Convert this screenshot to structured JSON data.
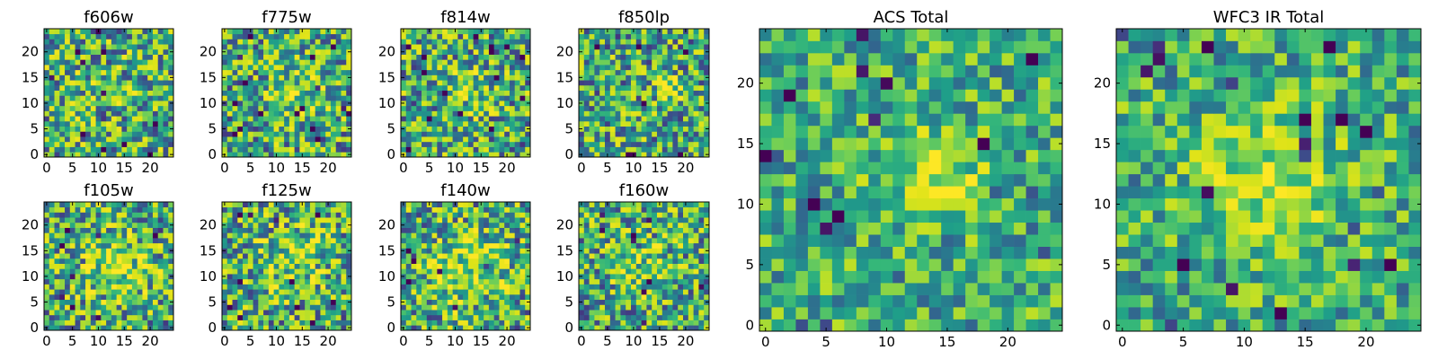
{
  "chart_data": [
    {
      "type": "heatmap",
      "title": "f606w",
      "xticks": [
        "0",
        "5",
        "10",
        "15",
        "20"
      ],
      "yticks": [
        "0",
        "5",
        "10",
        "15",
        "20"
      ],
      "xlim": [
        0,
        24
      ],
      "ylim": [
        0,
        24
      ],
      "colormap": "viridis",
      "grid": false,
      "values": []
    },
    {
      "type": "heatmap",
      "title": "f775w",
      "xticks": [
        "0",
        "5",
        "10",
        "15",
        "20"
      ],
      "yticks": [
        "0",
        "5",
        "10",
        "15",
        "20"
      ],
      "xlim": [
        0,
        24
      ],
      "ylim": [
        0,
        24
      ],
      "colormap": "viridis",
      "grid": false,
      "values": []
    },
    {
      "type": "heatmap",
      "title": "f814w",
      "xticks": [
        "0",
        "5",
        "10",
        "15",
        "20"
      ],
      "yticks": [
        "0",
        "5",
        "10",
        "15",
        "20"
      ],
      "xlim": [
        0,
        24
      ],
      "ylim": [
        0,
        24
      ],
      "colormap": "viridis",
      "grid": false,
      "values": []
    },
    {
      "type": "heatmap",
      "title": "f850lp",
      "xticks": [
        "0",
        "5",
        "10",
        "15",
        "20"
      ],
      "yticks": [
        "0",
        "5",
        "10",
        "15",
        "20"
      ],
      "xlim": [
        0,
        24
      ],
      "ylim": [
        0,
        24
      ],
      "colormap": "viridis",
      "grid": false,
      "values": []
    },
    {
      "type": "heatmap",
      "title": "f105w",
      "xticks": [
        "0",
        "5",
        "10",
        "15",
        "20"
      ],
      "yticks": [
        "0",
        "5",
        "10",
        "15",
        "20"
      ],
      "xlim": [
        0,
        24
      ],
      "ylim": [
        0,
        24
      ],
      "colormap": "viridis",
      "grid": false,
      "values": []
    },
    {
      "type": "heatmap",
      "title": "f125w",
      "xticks": [
        "0",
        "5",
        "10",
        "15",
        "20"
      ],
      "yticks": [
        "0",
        "5",
        "10",
        "15",
        "20"
      ],
      "xlim": [
        0,
        24
      ],
      "ylim": [
        0,
        24
      ],
      "colormap": "viridis",
      "grid": false,
      "values": []
    },
    {
      "type": "heatmap",
      "title": "f140w",
      "xticks": [
        "0",
        "5",
        "10",
        "15",
        "20"
      ],
      "yticks": [
        "0",
        "5",
        "10",
        "15",
        "20"
      ],
      "xlim": [
        0,
        24
      ],
      "ylim": [
        0,
        24
      ],
      "colormap": "viridis",
      "grid": false,
      "values": []
    },
    {
      "type": "heatmap",
      "title": "f160w",
      "xticks": [
        "0",
        "5",
        "10",
        "15",
        "20"
      ],
      "yticks": [
        "0",
        "5",
        "10",
        "15",
        "20"
      ],
      "xlim": [
        0,
        24
      ],
      "ylim": [
        0,
        24
      ],
      "colormap": "viridis",
      "grid": false,
      "values": []
    },
    {
      "type": "heatmap",
      "title": "ACS Total",
      "xticks": [
        "0",
        "5",
        "10",
        "15",
        "20"
      ],
      "yticks": [
        "0",
        "5",
        "10",
        "15",
        "20"
      ],
      "xlim": [
        0,
        24
      ],
      "ylim": [
        0,
        24
      ],
      "colormap": "viridis",
      "grid": false,
      "values": []
    },
    {
      "type": "heatmap",
      "title": "WFC3 IR Total",
      "xticks": [
        "0",
        "5",
        "10",
        "15",
        "20"
      ],
      "yticks": [
        "0",
        "5",
        "10",
        "15",
        "20"
      ],
      "xlim": [
        0,
        24
      ],
      "ylim": [
        0,
        24
      ],
      "colormap": "viridis",
      "grid": false,
      "values": []
    }
  ]
}
